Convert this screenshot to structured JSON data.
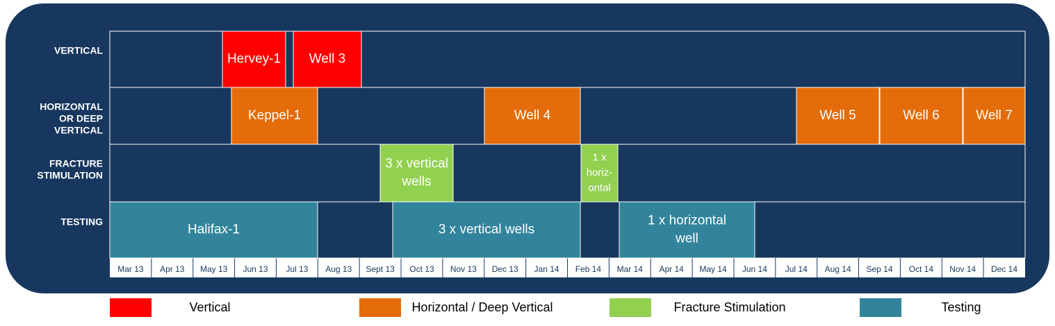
{
  "months": [
    "Mar 13",
    "Apr 13",
    "May 13",
    "Jun 13",
    "Jul 13",
    "Aug 13",
    "Sept 13",
    "Oct 13",
    "Nov 13",
    "Dec 13",
    "Jan 14",
    "Feb 14",
    "Mar 14",
    "Apr 14",
    "May 14",
    "Jun 14",
    "Jul 14",
    "Aug 14",
    "Sep 14",
    "Oct 14",
    "Nov 14",
    "Dec 14"
  ],
  "rows": [
    {
      "label": [
        "VERTICAL"
      ],
      "bars": [
        {
          "lines": [
            "Hervey-1"
          ]
        },
        {
          "lines": [
            "Well 3"
          ]
        }
      ]
    },
    {
      "label": [
        "HORIZONTAL",
        "OR DEEP",
        "VERTICAL"
      ],
      "bars": [
        {
          "lines": [
            "Keppel-1"
          ]
        },
        {
          "lines": [
            "Well 4"
          ]
        },
        {
          "lines": [
            "Well 5"
          ]
        },
        {
          "lines": [
            "Well 6"
          ]
        },
        {
          "lines": [
            "Well 7"
          ]
        }
      ]
    },
    {
      "label": [
        "FRACTURE",
        "STIMULATION"
      ],
      "bars": [
        {
          "lines": [
            "3 x vertical",
            "wells"
          ]
        },
        {
          "lines": [
            "1 x",
            "horiz-",
            "ontal"
          ]
        }
      ]
    },
    {
      "label": [
        "TESTING"
      ],
      "bars": [
        {
          "lines": [
            "Halifax-1"
          ]
        },
        {
          "lines": [
            "3 x vertical wells"
          ]
        },
        {
          "lines": [
            "1 x horizontal",
            "well"
          ]
        }
      ]
    }
  ],
  "legend": [
    {
      "label": "Vertical",
      "color": "#ff0000"
    },
    {
      "label": "Horizontal / Deep Vertical",
      "color": "#e46c0a"
    },
    {
      "label": "Fracture Stimulation",
      "color": "#92d050"
    },
    {
      "label": "Testing",
      "color": "#31849b"
    }
  ]
}
